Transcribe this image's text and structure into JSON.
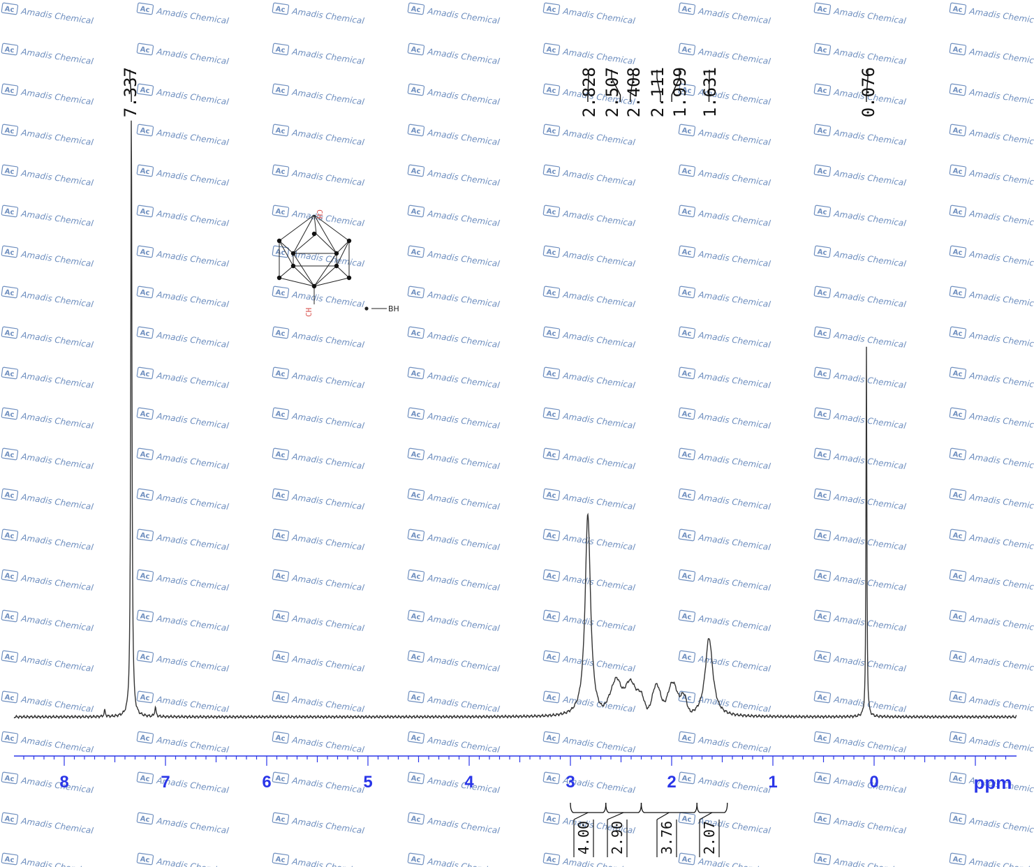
{
  "watermark": {
    "text": "Amadis Chemical",
    "badge": "Ac"
  },
  "chart_data": {
    "type": "line",
    "title": "",
    "xlabel": "ppm",
    "ylabel": "",
    "x_reversed": true,
    "xlim": [
      8.5,
      -1.4
    ],
    "xticks": [
      "8",
      "7",
      "6",
      "5",
      "4",
      "3",
      "2",
      "1",
      "0"
    ],
    "x_unit_label": "ppm",
    "peak_labels": [
      "7.337",
      "2.828",
      "2.507",
      "2.408",
      "2.111",
      "1.999",
      "1.631",
      "0.076"
    ],
    "peaks": [
      {
        "shift": 7.337,
        "relative_height": 1.0
      },
      {
        "shift": 2.828,
        "relative_height": 0.35
      },
      {
        "shift": 2.507,
        "relative_height": 0.06
      },
      {
        "shift": 2.408,
        "relative_height": 0.06
      },
      {
        "shift": 2.111,
        "relative_height": 0.05
      },
      {
        "shift": 1.999,
        "relative_height": 0.06
      },
      {
        "shift": 1.631,
        "relative_height": 0.15
      },
      {
        "shift": 0.076,
        "relative_height": 0.61
      }
    ],
    "integrals": [
      {
        "from": 3.0,
        "to": 2.65,
        "value": "4.00"
      },
      {
        "from": 2.65,
        "to": 2.3,
        "value": "2.90"
      },
      {
        "from": 2.3,
        "to": 1.75,
        "value": "3.76"
      },
      {
        "from": 1.75,
        "to": 1.45,
        "value": "2.07"
      }
    ],
    "color": "#333333",
    "axis_color": "#2a36e8"
  },
  "molecule": {
    "top_label": "CH",
    "bottom_label": "CH",
    "legend_label": "BH"
  }
}
